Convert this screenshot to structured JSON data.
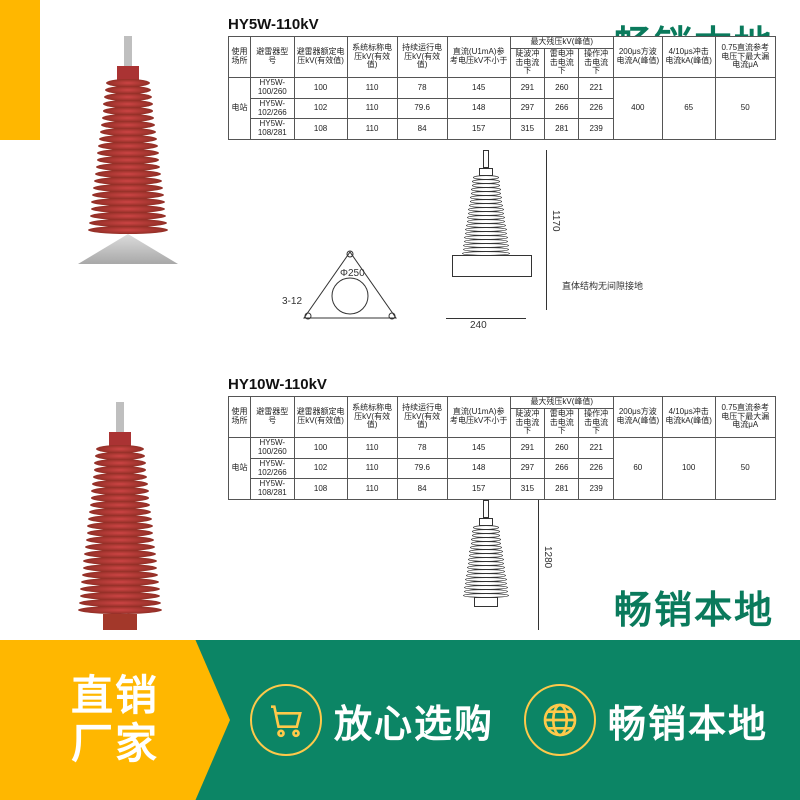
{
  "watermarks": {
    "top": "畅销本地",
    "bottom": "畅销本地"
  },
  "sections": [
    {
      "title": "HY5W-110kV",
      "table": {
        "header_row1": [
          "使用场所",
          "避雷器型号",
          "避雷器额定电压kV(有效值)",
          "系统标称电压kV(有效值)",
          "持续运行电压kV(有效值)",
          "直流(U1mA)参考电压kV不小于",
          {
            "span": 3,
            "label": "最大残压kV(峰值)"
          },
          "200μs方波电流A(峰值)",
          "4/10μs冲击电流kA(峰值)",
          "0.75直流参考电压下最大漏电流μA"
        ],
        "header_row2": [
          "陡波冲击电流下",
          "雷电冲击电流下",
          "操作冲击电流下"
        ],
        "rows": [
          [
            "电站",
            "HY5W-100/260",
            "100",
            "110",
            "78",
            "145",
            "291",
            "260",
            "221",
            "400",
            "65",
            "50"
          ],
          [
            "",
            "HY5W-102/266",
            "102",
            "110",
            "79.6",
            "148",
            "297",
            "266",
            "226",
            "",
            "",
            ""
          ],
          [
            "",
            "HY5W-108/281",
            "108",
            "110",
            "84",
            "157",
            "315",
            "281",
            "239",
            "",
            "",
            ""
          ]
        ]
      },
      "dims": {
        "height": "1170",
        "base_w": "240",
        "base_hole": "Φ250",
        "base_slot": "3-12"
      },
      "note": "直体结构无间隙接地"
    },
    {
      "title": "HY10W-110kV",
      "table": {
        "header_row1": [
          "使用场所",
          "避雷器型号",
          "避雷器额定电压kV(有效值)",
          "系统标称电压kV(有效值)",
          "持续运行电压kV(有效值)",
          "直流(U1mA)参考电压kV不小于",
          {
            "span": 3,
            "label": "最大残压kV(峰值)"
          },
          "200μs方波电流A(峰值)",
          "4/10μs冲击电流kA(峰值)",
          "0.75直流参考电压下最大漏电流μA"
        ],
        "header_row2": [
          "陡波冲击电流下",
          "雷电冲击电流下",
          "操作冲击电流下"
        ],
        "rows": [
          [
            "电站",
            "HY5W-100/260",
            "100",
            "110",
            "78",
            "145",
            "291",
            "260",
            "221",
            "60",
            "100",
            "50"
          ],
          [
            "",
            "HY5W-102/266",
            "102",
            "110",
            "79.6",
            "148",
            "297",
            "266",
            "226",
            "",
            "",
            ""
          ],
          [
            "",
            "HY5W-108/281",
            "108",
            "110",
            "84",
            "157",
            "315",
            "281",
            "239",
            "",
            "",
            ""
          ]
        ]
      },
      "dims": {
        "height": "1280"
      }
    }
  ],
  "banner": {
    "left": "直销\n厂家",
    "right": [
      {
        "icon": "cart",
        "label": "放心选购"
      },
      {
        "icon": "globe",
        "label": "畅销本地"
      }
    ]
  },
  "style": {
    "arrester_color": "#a3382a",
    "green": "#0c8565",
    "yellow": "#ffb700",
    "yellow_stroke": "#ffc94a",
    "title_fontsize": 15,
    "table_fontsize": 8,
    "banner_fontsize": 38,
    "bannerleft_fontsize": 42,
    "watermark_fontsize": 38
  }
}
